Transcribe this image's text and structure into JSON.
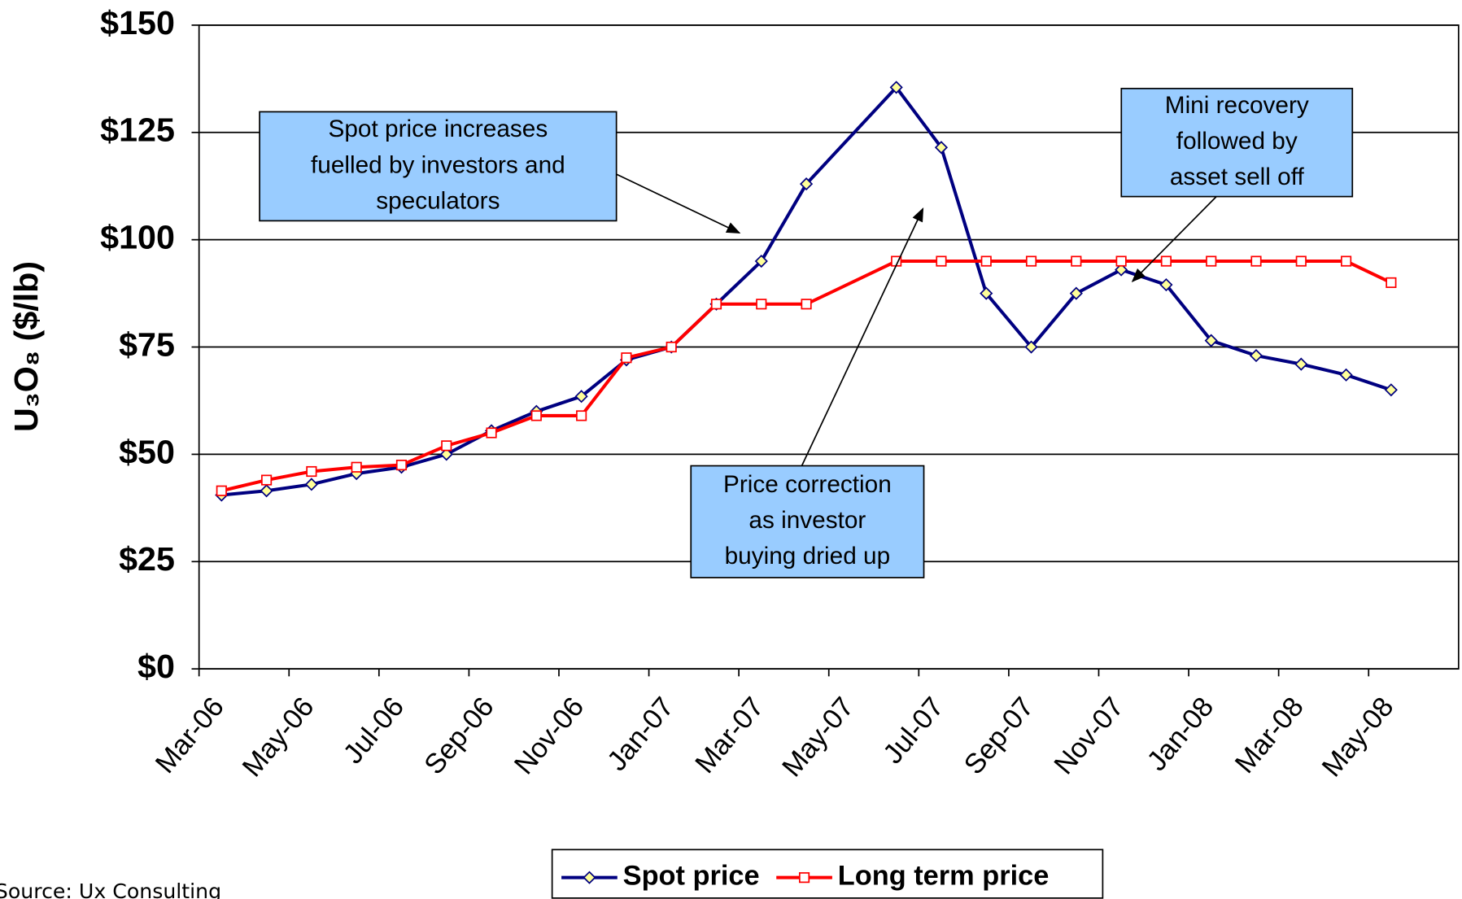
{
  "chart_data": {
    "type": "line",
    "y_label": "U₃O₈ ($/lb)",
    "x": [
      "2006-03",
      "2006-04",
      "2006-05",
      "2006-06",
      "2006-07",
      "2006-08",
      "2006-09",
      "2006-10",
      "2006-11",
      "2006-12",
      "2007-01",
      "2007-02",
      "2007-03",
      "2007-04",
      "2007-06",
      "2007-07",
      "2007-08",
      "2007-09",
      "2007-10",
      "2007-11",
      "2007-12",
      "2008-01",
      "2008-02",
      "2008-03",
      "2008-04",
      "2008-05"
    ],
    "series": [
      {
        "name": "Spot price",
        "color": "#000080",
        "marker_fill": "#ffff99",
        "marker": "diamond",
        "values": [
          40.5,
          41.5,
          43,
          45.5,
          47,
          50,
          55.5,
          60,
          63.5,
          72,
          75,
          85,
          95,
          113,
          135.5,
          121.5,
          87.5,
          75,
          87.5,
          93,
          89.5,
          76.5,
          73,
          71,
          68.5,
          65
        ]
      },
      {
        "name": "Long term price",
        "color": "#ff0000",
        "marker_fill": "#ffffff",
        "marker": "square",
        "values": [
          41.5,
          44,
          46,
          47,
          47.5,
          52,
          55,
          59,
          59,
          72.5,
          75,
          85,
          85,
          85,
          95,
          95,
          95,
          95,
          95,
          95,
          95,
          95,
          95,
          95,
          95,
          90
        ]
      }
    ],
    "xlim": [
      "2006-03",
      "2008-07"
    ],
    "xticks": [
      {
        "value": "2006-03",
        "label": "Mar-06"
      },
      {
        "value": "2006-05",
        "label": "May-06"
      },
      {
        "value": "2006-07",
        "label": "Jul-06"
      },
      {
        "value": "2006-09",
        "label": "Sep-06"
      },
      {
        "value": "2006-11",
        "label": "Nov-06"
      },
      {
        "value": "2007-01",
        "label": "Jan-07"
      },
      {
        "value": "2007-03",
        "label": "Mar-07"
      },
      {
        "value": "2007-05",
        "label": "May-07"
      },
      {
        "value": "2007-07",
        "label": "Jul-07"
      },
      {
        "value": "2007-09",
        "label": "Sep-07"
      },
      {
        "value": "2007-11",
        "label": "Nov-07"
      },
      {
        "value": "2008-01",
        "label": "Jan-08"
      },
      {
        "value": "2008-03",
        "label": "Mar-08"
      },
      {
        "value": "2008-05",
        "label": "May-08"
      }
    ],
    "ylim": [
      0,
      150
    ],
    "yticks": [
      {
        "value": 0,
        "label": "$0"
      },
      {
        "value": 25,
        "label": "$25"
      },
      {
        "value": 50,
        "label": "$50"
      },
      {
        "value": 75,
        "label": "$75"
      },
      {
        "value": 100,
        "label": "$100"
      },
      {
        "value": 125,
        "label": "$125"
      },
      {
        "value": 150,
        "label": "$150"
      }
    ],
    "grid": true,
    "legend": "bottom",
    "annotations": [
      {
        "lines": [
          "Spot price increases",
          "fuelled by investors and",
          "speculators"
        ]
      },
      {
        "lines": [
          "Mini recovery",
          "followed by",
          "asset sell off"
        ]
      },
      {
        "lines": [
          "Price correction",
          "as investor",
          "buying dried up"
        ]
      }
    ],
    "source": "Source:  Ux Consulting"
  }
}
